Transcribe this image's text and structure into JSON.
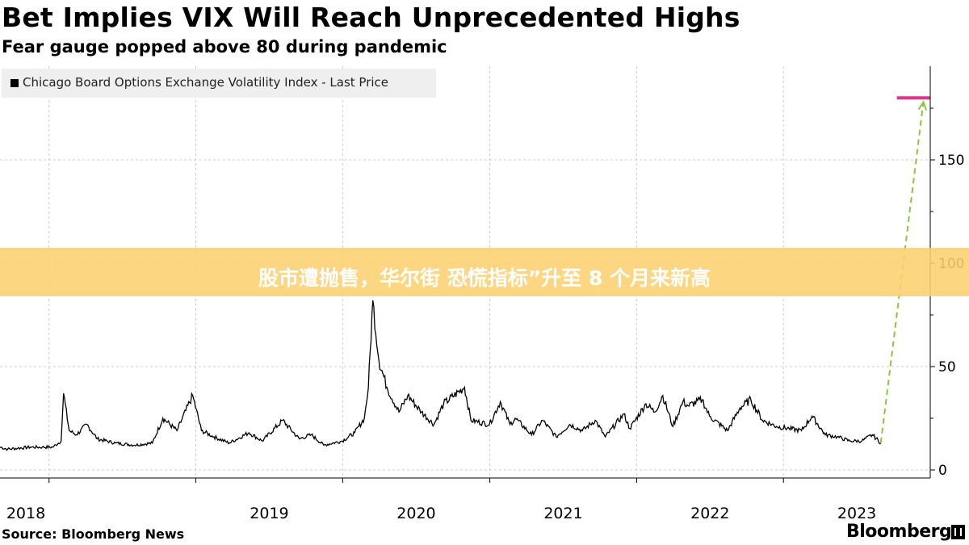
{
  "header": {
    "title": "Bet Implies VIX Will Reach Unprecedented Highs",
    "subtitle": "Fear gauge popped above 80 during pandemic"
  },
  "legend": {
    "label": "Chicago Board Options Exchange Volatility Index - Last Price"
  },
  "banner": {
    "text": "股市遭抛售，华尔街 恐慌指标”升至 8 个月来新高"
  },
  "footer": {
    "source": "Source: Bloomberg News",
    "logo": "Bloomberg"
  },
  "colors": {
    "series": "#000000",
    "target_line": "#e0318f",
    "projection": "#8cc63f",
    "grid": "#cccccc",
    "banner": "#fdd070"
  },
  "chart_data": {
    "type": "line",
    "title": "Bet Implies VIX Will Reach Unprecedented Highs",
    "subtitle": "Fear gauge popped above 80 during pandemic",
    "xlabel": "",
    "ylabel": "",
    "x_ticks": [
      "2018",
      "2019",
      "2020",
      "2021",
      "2022",
      "2023"
    ],
    "y_ticks": [
      0,
      50,
      100,
      150
    ],
    "ylim": [
      0,
      195
    ],
    "xlim": [
      "2017-09-01",
      "2024-01-01"
    ],
    "grid": true,
    "legend_position": "top-left",
    "series": [
      {
        "name": "Chicago Board Options Exchange Volatility Index - Last Price",
        "x": [
          "2017-09-01",
          "2017-09-20",
          "2017-10-15",
          "2017-11-15",
          "2017-12-15",
          "2018-01-10",
          "2018-01-31",
          "2018-02-06",
          "2018-02-20",
          "2018-03-10",
          "2018-04-05",
          "2018-05-01",
          "2018-06-15",
          "2018-08-01",
          "2018-09-15",
          "2018-10-11",
          "2018-11-15",
          "2018-12-24",
          "2019-01-15",
          "2019-02-15",
          "2019-03-25",
          "2019-05-13",
          "2019-06-15",
          "2019-08-05",
          "2019-09-15",
          "2019-10-15",
          "2019-11-15",
          "2019-12-31",
          "2020-01-31",
          "2020-02-24",
          "2020-03-05",
          "2020-03-16",
          "2020-03-31",
          "2020-04-20",
          "2020-05-20",
          "2020-06-11",
          "2020-07-15",
          "2020-08-15",
          "2020-09-08",
          "2020-10-30",
          "2020-11-15",
          "2020-12-31",
          "2021-01-27",
          "2021-02-20",
          "2021-03-05",
          "2021-04-15",
          "2021-05-12",
          "2021-06-15",
          "2021-07-19",
          "2021-08-19",
          "2021-09-20",
          "2021-10-15",
          "2021-11-30",
          "2021-12-15",
          "2022-01-24",
          "2022-02-15",
          "2022-03-07",
          "2022-04-01",
          "2022-04-26",
          "2022-05-09",
          "2022-06-13",
          "2022-07-01",
          "2022-08-15",
          "2022-09-15",
          "2022-10-12",
          "2022-11-10",
          "2022-12-15",
          "2023-01-15",
          "2023-02-15",
          "2023-03-13",
          "2023-04-15",
          "2023-05-15",
          "2023-06-15",
          "2023-07-15",
          "2023-08-10",
          "2023-08-31"
        ],
        "values": [
          11,
          10,
          10.5,
          11,
          11,
          11,
          14,
          37,
          19,
          17,
          22,
          15,
          13,
          12,
          13,
          25,
          19,
          36,
          19,
          16,
          13,
          18,
          14,
          24,
          15,
          17,
          12,
          14,
          18,
          25,
          40,
          82,
          53,
          40,
          28,
          36,
          28,
          22,
          32,
          40,
          24,
          22,
          33,
          22,
          25,
          17,
          24,
          16,
          22,
          19,
          24,
          16,
          27,
          20,
          32,
          28,
          36,
          21,
          33,
          31,
          34,
          26,
          19,
          30,
          34,
          24,
          21,
          20,
          19,
          26,
          17,
          16,
          14,
          14,
          17,
          13
        ]
      },
      {
        "name": "",
        "style": "dashed",
        "x": [
          "2023-08-31",
          "2023-12-15"
        ],
        "values": [
          13,
          178
        ]
      },
      {
        "name": "",
        "style": "horizontal",
        "x": [
          "2023-10-10",
          "2023-12-31"
        ],
        "values": [
          180,
          180
        ]
      }
    ]
  }
}
